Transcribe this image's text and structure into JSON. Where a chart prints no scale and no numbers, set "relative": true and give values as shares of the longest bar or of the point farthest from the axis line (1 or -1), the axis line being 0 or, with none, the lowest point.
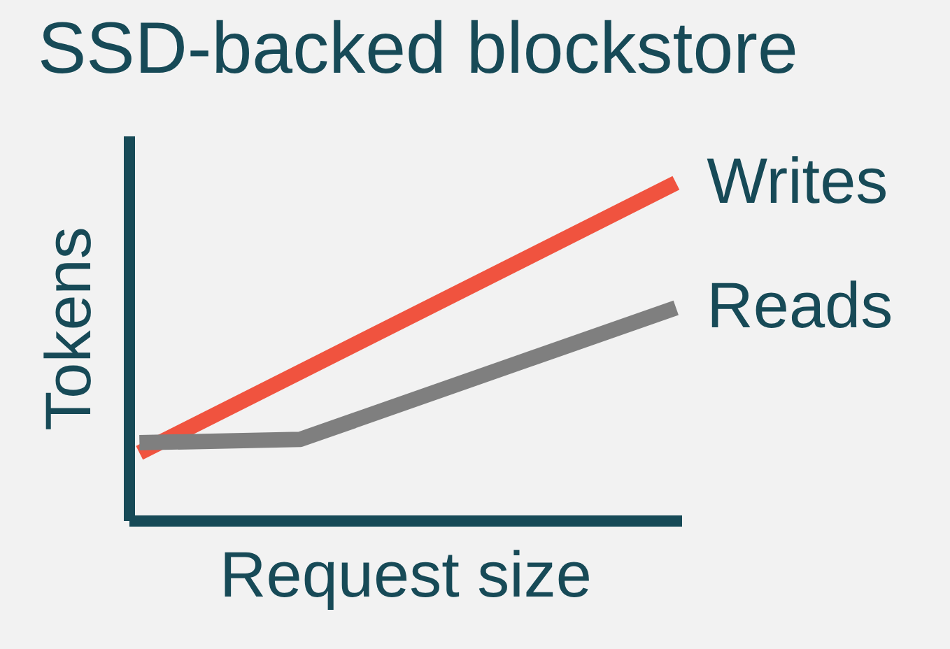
{
  "chart_data": {
    "type": "line",
    "title": "SSD-backed blockstore",
    "xlabel": "Request size",
    "ylabel": "Tokens",
    "relative": true,
    "legend": false,
    "marker": "none",
    "categories": [
      null,
      null,
      null,
      null,
      null,
      null,
      null,
      null,
      null,
      null,
      null
    ],
    "series": [
      {
        "name": "Writes",
        "color": "#f0533f",
        "values": [
          0.2,
          null,
          null,
          null,
          null,
          null,
          null,
          null,
          null,
          null,
          1
        ]
      },
      {
        "name": "Reads",
        "color": "#7f7f7f",
        "values": [
          0.23,
          null,
          null,
          0.24,
          null,
          null,
          null,
          null,
          null,
          null,
          0.63
        ]
      }
    ]
  }
}
